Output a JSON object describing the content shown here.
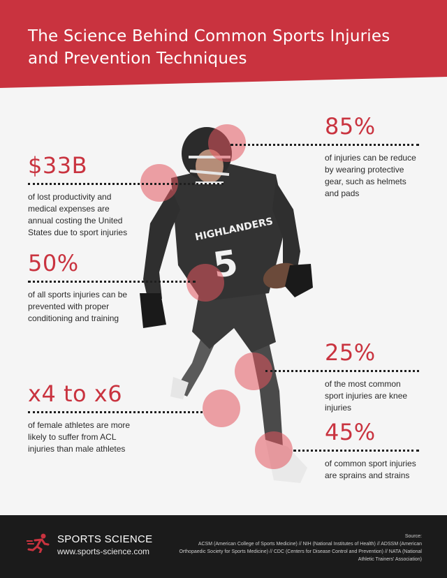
{
  "title": "The Science Behind Common Sports Injuries and Prevention Techniques",
  "colors": {
    "accent": "#c9333f",
    "dark": "#1b1b1b",
    "background": "#f5f5f5"
  },
  "stats": {
    "cost": {
      "value": "$33B",
      "desc": "of lost productivity and medical expenses are annual costing the United States due to sport injuries"
    },
    "prevented": {
      "value": "50%",
      "desc": "of all sports injuries can be prevented with proper conditioning and training"
    },
    "female": {
      "value": "x4 to x6",
      "desc": "of female athletes are more likely to suffer from ACL injuries than male athletes"
    },
    "gear": {
      "value": "85%",
      "desc": "of injuries can be reduce by wearing protective gear, such as helmets and pads"
    },
    "knee": {
      "value": "25%",
      "desc": "of the most common sport injuries are knee injuries"
    },
    "sprains": {
      "value": "45%",
      "desc": "of common sport injuries are sprains and strains"
    }
  },
  "player": {
    "jersey_text": "HIGHLANDERS",
    "number": "5"
  },
  "footer": {
    "brand": "SPORTS SCIENCE",
    "website": "www.sports-science.com",
    "source_label": "Source:",
    "source_text": "ACSM (American College of Sports Medicine) // NIH (National Institutes of Health) // ADSSM (American Orthopaedic Society for Sports Medicine) // CDC (Centers for Disease Control and Prevention) // NATA (National Athletic Trainers' Association)",
    "logo_icon": "running-person-icon"
  }
}
